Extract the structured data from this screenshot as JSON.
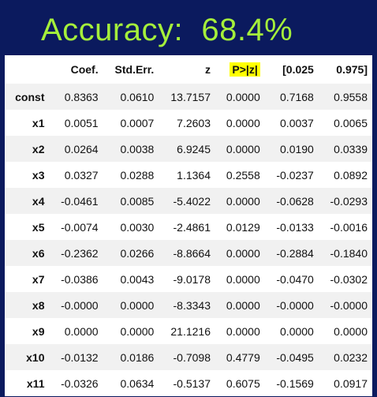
{
  "title": "Accuracy:  68.4%",
  "table": {
    "columns": [
      "",
      "Coef.",
      "Std.Err.",
      "z",
      "P>|z|",
      "[0.025",
      "0.975]"
    ],
    "highlight_color": "#ffff00",
    "rows": [
      [
        "const",
        "0.8363",
        "0.0610",
        "13.7157",
        "0.0000",
        "0.7168",
        "0.9558"
      ],
      [
        "x1",
        "0.0051",
        "0.0007",
        "7.2603",
        "0.0000",
        "0.0037",
        "0.0065"
      ],
      [
        "x2",
        "0.0264",
        "0.0038",
        "6.9245",
        "0.0000",
        "0.0190",
        "0.0339"
      ],
      [
        "x3",
        "0.0327",
        "0.0288",
        "1.1364",
        "0.2558",
        "-0.0237",
        "0.0892"
      ],
      [
        "x4",
        "-0.0461",
        "0.0085",
        "-5.4022",
        "0.0000",
        "-0.0628",
        "-0.0293"
      ],
      [
        "x5",
        "-0.0074",
        "0.0030",
        "-2.4861",
        "0.0129",
        "-0.0133",
        "-0.0016"
      ],
      [
        "x6",
        "-0.2362",
        "0.0266",
        "-8.8664",
        "0.0000",
        "-0.2884",
        "-0.1840"
      ],
      [
        "x7",
        "-0.0386",
        "0.0043",
        "-9.0178",
        "0.0000",
        "-0.0470",
        "-0.0302"
      ],
      [
        "x8",
        "-0.0000",
        "0.0000",
        "-8.3343",
        "0.0000",
        "-0.0000",
        "-0.0000"
      ],
      [
        "x9",
        "0.0000",
        "0.0000",
        "21.1216",
        "0.0000",
        "0.0000",
        "0.0000"
      ],
      [
        "x10",
        "-0.0132",
        "0.0186",
        "-0.7098",
        "0.4779",
        "-0.0495",
        "0.0232"
      ],
      [
        "x11",
        "-0.0326",
        "0.0634",
        "-0.5137",
        "0.6075",
        "-0.1569",
        "0.0917"
      ]
    ]
  }
}
